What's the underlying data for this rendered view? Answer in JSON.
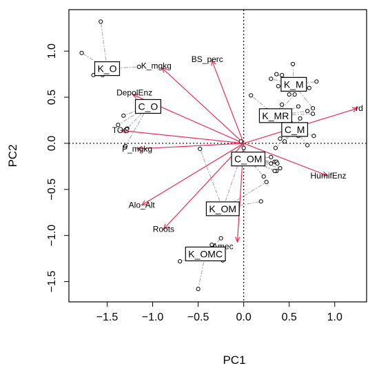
{
  "chart_data": {
    "type": "scatter",
    "subtype": "PCA biplot",
    "xlabel": "PC1",
    "ylabel": "PC2",
    "xlim": [
      -1.92,
      1.35
    ],
    "ylim": [
      -1.72,
      1.45
    ],
    "x_ticks": [
      -1.5,
      -1.0,
      -0.5,
      0.0,
      0.5,
      1.0
    ],
    "x_tick_labels": [
      "−1.5",
      "−1.0",
      "−0.5",
      "0.0",
      "0.5",
      "1.0"
    ],
    "y_ticks": [
      -1.5,
      -1.0,
      -0.5,
      0.0,
      0.5,
      1.0
    ],
    "y_tick_labels": [
      "−1.5",
      "−1.0",
      "−0.5",
      "0.0",
      "0.5",
      "1.0"
    ],
    "reference_lines": {
      "x": 0,
      "y": 0,
      "style": "dotted"
    },
    "colors": {
      "arrow": "#ee2a55",
      "spider": "#b0b0b0",
      "point": "#000000"
    },
    "loadings": [
      {
        "name": "BS_perc",
        "x": -0.35,
        "y": 0.9,
        "label_x": -0.4,
        "label_y": 0.91
      },
      {
        "name": "K_mgkg",
        "x": -0.9,
        "y": 0.82,
        "label_x": -0.96,
        "label_y": 0.84
      },
      {
        "name": "DepolEnz",
        "x": -1.22,
        "y": 0.53,
        "label_x": -1.2,
        "label_y": 0.55
      },
      {
        "name": "TOC",
        "x": -1.35,
        "y": 0.14,
        "label_x": -1.35,
        "label_y": 0.14
      },
      {
        "name": "P_mgkg",
        "x": -1.17,
        "y": -0.06,
        "label_x": -1.17,
        "label_y": -0.06
      },
      {
        "name": "Alo_Alt",
        "x": -1.12,
        "y": -0.67,
        "label_x": -1.12,
        "label_y": -0.67
      },
      {
        "name": "Roots",
        "x": -0.88,
        "y": -0.93,
        "label_x": -0.88,
        "label_y": -0.93
      },
      {
        "name": "Amec",
        "x": -0.07,
        "y": -1.07,
        "label_x": -0.23,
        "label_y": -1.12
      },
      {
        "name": "rd",
        "x": 1.25,
        "y": 0.38,
        "label_x": 1.27,
        "label_y": 0.38
      },
      {
        "name": "HumifEnz",
        "x": 0.92,
        "y": -0.35,
        "label_x": 0.93,
        "label_y": -0.35
      }
    ],
    "groups": [
      {
        "name": "K_O",
        "label_x": -1.5,
        "label_y": 0.81,
        "points": [
          [
            -1.78,
            0.98
          ],
          [
            -1.57,
            1.32
          ],
          [
            -1.65,
            0.74
          ],
          [
            -1.15,
            0.83
          ],
          [
            -1.55,
            0.74
          ]
        ]
      },
      {
        "name": "C_O",
        "label_x": -1.05,
        "label_y": 0.4,
        "points": [
          [
            -1.32,
            0.3
          ],
          [
            -1.38,
            0.2
          ],
          [
            -1.28,
            0.16
          ],
          [
            -1.3,
            -0.03
          ]
        ]
      },
      {
        "name": "K_M",
        "label_x": 0.55,
        "label_y": 0.64,
        "points": [
          [
            0.3,
            0.7
          ],
          [
            0.36,
            0.75
          ],
          [
            0.54,
            0.86
          ],
          [
            0.42,
            0.74
          ],
          [
            0.72,
            0.6
          ],
          [
            0.8,
            0.67
          ],
          [
            0.76,
            0.38
          ],
          [
            0.38,
            0.62
          ],
          [
            0.5,
            0.53
          ]
        ]
      },
      {
        "name": "K_MR",
        "label_x": 0.35,
        "label_y": 0.3,
        "points": [
          [
            0.08,
            0.52
          ],
          [
            0.25,
            0.36
          ],
          [
            0.76,
            0.32
          ],
          [
            0.6,
            0.4
          ],
          [
            0.42,
            0.42
          ],
          [
            0.56,
            0.53
          ],
          [
            0.7,
            0.35
          ]
        ]
      },
      {
        "name": "C_M",
        "label_x": 0.56,
        "label_y": 0.15,
        "points": [
          [
            0.45,
            0.02
          ],
          [
            0.52,
            0.22
          ],
          [
            0.58,
            0.1
          ],
          [
            0.62,
            0.27
          ],
          [
            0.77,
            0.08
          ],
          [
            0.6,
            0.08
          ],
          [
            0.35,
            -0.05
          ],
          [
            0.4,
            0.05
          ],
          [
            0.7,
            -0.02
          ]
        ]
      },
      {
        "name": "C_OM",
        "label_x": 0.05,
        "label_y": -0.17,
        "points": [
          [
            0.3,
            -0.15
          ],
          [
            0.34,
            -0.2
          ],
          [
            0.36,
            -0.2
          ],
          [
            0.37,
            -0.22
          ],
          [
            0.36,
            -0.3
          ],
          [
            0.22,
            -0.36
          ],
          [
            0.3,
            -0.22
          ],
          [
            0.34,
            -0.3
          ],
          [
            -0.03,
            0.02
          ],
          [
            0.4,
            -0.27
          ]
        ]
      },
      {
        "name": "K_OM",
        "label_x": -0.23,
        "label_y": -0.71,
        "points": [
          [
            -0.37,
            -0.66
          ],
          [
            -0.48,
            -0.06
          ],
          [
            0.0,
            -0.05
          ],
          [
            0.19,
            -0.63
          ],
          [
            0.25,
            -0.42
          ]
        ]
      },
      {
        "name": "K_OMC",
        "label_x": -0.42,
        "label_y": -1.2,
        "points": [
          [
            -0.35,
            -1.1
          ],
          [
            -0.7,
            -1.28
          ],
          [
            -0.5,
            -1.58
          ],
          [
            -0.25,
            -1.03
          ],
          [
            -0.23,
            -1.27
          ],
          [
            -0.45,
            -1.2
          ]
        ]
      }
    ]
  }
}
